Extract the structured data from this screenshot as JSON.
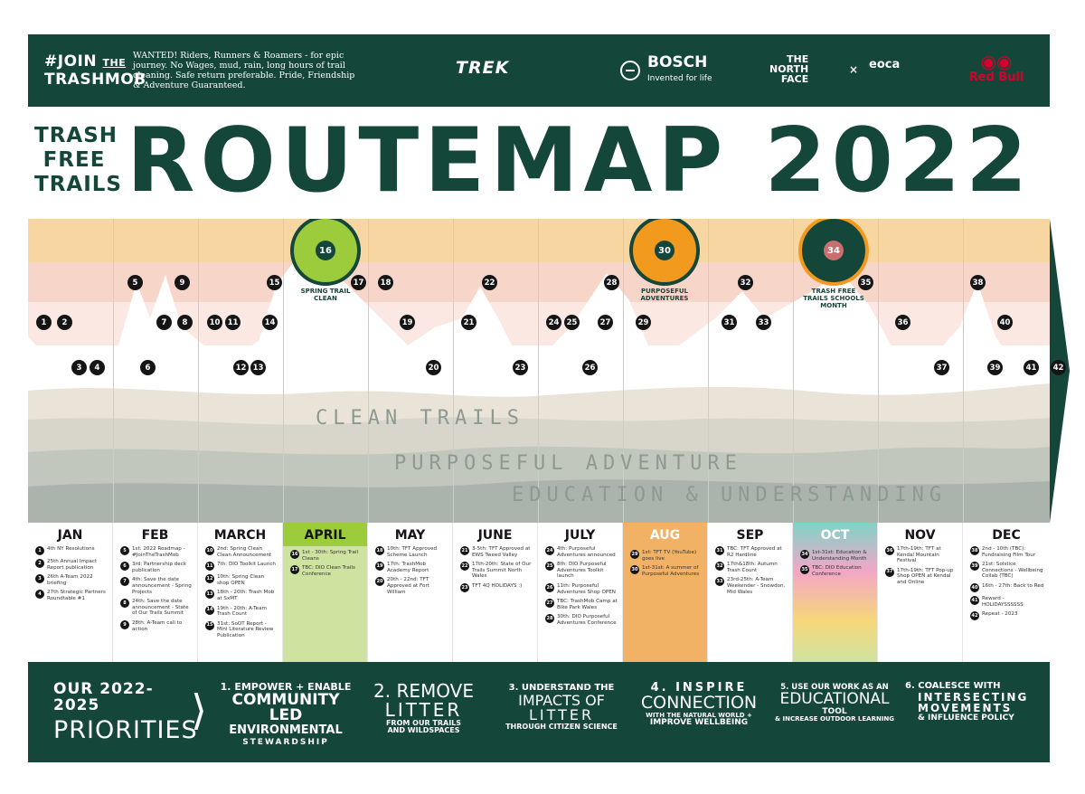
{
  "header": {
    "join_line1": "#JOIN",
    "join_the": "THE",
    "join_line2": "TRASHMOB",
    "wanted": "WANTED! Riders, Runners & Roamers - for epic journey. No Wages, mud, rain, long hours of trail cleaning. Safe return preferable. Pride, Friendship & Adventure Guaranteed.",
    "sponsors": {
      "trek": "TREK",
      "bosch": "BOSCH",
      "bosch_tagline": "Invented for life",
      "tnf_line1": "THE",
      "tnf_line2": "NORTH",
      "tnf_line3": "FACE",
      "times": "×",
      "eoca": "eoca",
      "redbull": "Red Bull"
    }
  },
  "title": {
    "tft_line1": "TRASH",
    "tft_line2": "FREE",
    "tft_line3": "TRAILS",
    "main": "ROUTEMAP 2022"
  },
  "badges": {
    "spring": {
      "number": "16",
      "text": "SPRING TRAIL CLEAN"
    },
    "purposeful": {
      "number": "30",
      "text": "PURPOSEFUL ADVENTURES"
    },
    "schools": {
      "number": "34",
      "text": "TRASH FREE TRAILS SCHOOLS MONTH"
    }
  },
  "themes": {
    "t1": "CLEAN TRAILS",
    "t2": "PURPOSEFUL ADVENTURE",
    "t3": "EDUCATION & UNDERSTANDING"
  },
  "map_points": [
    "1",
    "2",
    "3",
    "4",
    "5",
    "6",
    "7",
    "8",
    "9",
    "10",
    "11",
    "12",
    "13",
    "14",
    "15",
    "17",
    "18",
    "19",
    "20",
    "21",
    "22",
    "23",
    "24",
    "25",
    "26",
    "27",
    "28",
    "29",
    "31",
    "32",
    "33",
    "35",
    "36",
    "37",
    "38",
    "39",
    "40",
    "41",
    "42"
  ],
  "months": [
    {
      "name": "JAN",
      "events": [
        {
          "n": "1",
          "t": "4th NY Resolutions"
        },
        {
          "n": "2",
          "t": "25th Annual Impact Report publication"
        },
        {
          "n": "3",
          "t": "26th A-Team 2022 briefing"
        },
        {
          "n": "4",
          "t": "27th Strategic Partners Roundtable #1"
        }
      ]
    },
    {
      "name": "FEB",
      "events": [
        {
          "n": "5",
          "t": "1st: 2022 Roadmap - #JoinTheTrashMob"
        },
        {
          "n": "6",
          "t": "3rd: Partnership deck publication"
        },
        {
          "n": "7",
          "t": "4th: Save the date announcement - Spring Projects"
        },
        {
          "n": "8",
          "t": "24th: Save the date announcement - State of Our Trails Summit"
        },
        {
          "n": "9",
          "t": "28th: A-Team call to action"
        }
      ]
    },
    {
      "name": "MARCH",
      "events": [
        {
          "n": "10",
          "t": "2nd: Spring Clean Clean Announcement"
        },
        {
          "n": "11",
          "t": "7th: DIO Toolkit Launch"
        },
        {
          "n": "12",
          "t": "10th: Spring Clean shop OPEN"
        },
        {
          "n": "13",
          "t": "18th - 20th: Trash Mob at SxMT"
        },
        {
          "n": "14",
          "t": "19th - 20th: A-Team Trash Count"
        },
        {
          "n": "15",
          "t": "31st: SoOT Report - Mini Literature Review Publication"
        }
      ]
    },
    {
      "name": "APRIL",
      "events": [
        {
          "n": "16",
          "t": "1st - 30th: Spring Trail Cleans"
        },
        {
          "n": "17",
          "t": "TBC: DIO Clean Trails Conference"
        }
      ]
    },
    {
      "name": "MAY",
      "events": [
        {
          "n": "18",
          "t": "10th: TFT Approved Scheme Launch"
        },
        {
          "n": "19",
          "t": "17th: TrashMob Academy Report"
        },
        {
          "n": "20",
          "t": "20th - 22nd: TFT Approved at Fort William"
        }
      ]
    },
    {
      "name": "JUNE",
      "events": [
        {
          "n": "21",
          "t": "3-5th: TFT Approved at EWS Tweed Valley"
        },
        {
          "n": "22",
          "t": "17th-20th: State of Our Trails Summit North Wales"
        },
        {
          "n": "23",
          "t": "TFT 4Q HOLIDAYS :)"
        }
      ]
    },
    {
      "name": "JULY",
      "events": [
        {
          "n": "24",
          "t": "4th: Purposeful Adventures announced"
        },
        {
          "n": "25",
          "t": "8th: DIO Purposeful Adventures Toolkit launch"
        },
        {
          "n": "26",
          "t": "11th: Purposeful Adventures Shop OPEN"
        },
        {
          "n": "27",
          "t": "TBC: TrashMob Camp at Bike Park Wales"
        },
        {
          "n": "28",
          "t": "30th: DIO Purposeful Adventures Conference"
        }
      ]
    },
    {
      "name": "AUG",
      "events": [
        {
          "n": "29",
          "t": "1st: TFT TV (YouTube) goes live"
        },
        {
          "n": "30",
          "t": "1st-31st: A summer of Purposeful Adventures"
        }
      ]
    },
    {
      "name": "SEP",
      "events": [
        {
          "n": "31",
          "t": "TBC: TFT Approved at R2 Hardline"
        },
        {
          "n": "32",
          "t": "17th&18th: Autumn Trash Count"
        },
        {
          "n": "33",
          "t": "23rd-25th: A-Team Weekender - Snowdon, Mid Wales"
        }
      ]
    },
    {
      "name": "OCT",
      "events": [
        {
          "n": "34",
          "t": "1st-31st: Education & Understanding Month"
        },
        {
          "n": "35",
          "t": "TBC: DIO Education Conference"
        }
      ]
    },
    {
      "name": "NOV",
      "events": [
        {
          "n": "36",
          "t": "17th-19th: TFT at Kendal Mountain Festival"
        },
        {
          "n": "37",
          "t": "17th-19th: TFT Pop-up Shop OPEN at Kendal and Online"
        }
      ]
    },
    {
      "name": "DEC",
      "events": [
        {
          "n": "38",
          "t": "2nd - 10th (TBC): Fundraising Film Tour"
        },
        {
          "n": "39",
          "t": "21st: Solstice Connections - Wellbeing Collab (TBC)"
        },
        {
          "n": "40",
          "t": "16th - 27th: Back to Red"
        },
        {
          "n": "41",
          "t": "Reward - HOLIDAYSSSSSS"
        },
        {
          "n": "42",
          "t": "Repeat - 2023"
        }
      ]
    }
  ],
  "footer": {
    "heading_line1": "OUR 2022-2025",
    "heading_line2": "PRIORITIES",
    "priorities": [
      {
        "line1": "1. EMPOWER + ENABLE",
        "line2": "COMMUNITY LED",
        "line3": "ENVIRONMENTAL",
        "line4": "STEWARDSHIP"
      },
      {
        "line1": "2. REMOVE",
        "line2": "LITTER",
        "line3": "FROM OUR TRAILS",
        "line4": "AND WILDSPACES"
      },
      {
        "line1": "3. UNDERSTAND THE",
        "line2": "IMPACTS OF",
        "line3": "LITTER",
        "line4": "THROUGH CITIZEN SCIENCE"
      },
      {
        "line1": "4. INSPIRE",
        "line2": "CONNECTION",
        "line3": "WITH THE NATURAL WORLD +",
        "line4": "IMPROVE WELLBEING"
      },
      {
        "line1": "5. USE OUR WORK AS AN",
        "line2": "EDUCATIONAL",
        "line3": "TOOL",
        "line4": "& INCREASE OUTDOOR LEARNING"
      },
      {
        "line1": "6. COALESCE WITH",
        "line2": "INTERSECTING",
        "line3": "MOVEMENTS",
        "line4": "& INFLUENCE POLICY"
      }
    ]
  },
  "colors": {
    "dark_green": "#15463a",
    "april": "#cfe3a0",
    "aug": "#f2b266",
    "sky_top": "#f7d6a2",
    "sky_mid": "#f7d6c9"
  }
}
